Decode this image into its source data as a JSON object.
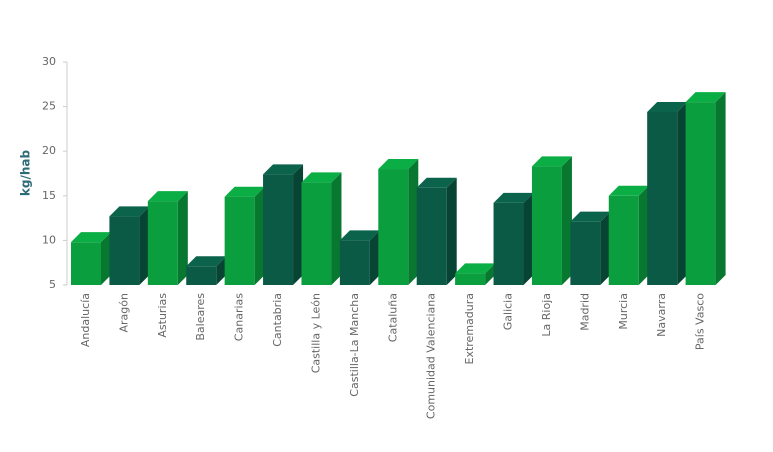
{
  "chart_data": {
    "type": "bar3d",
    "y_label": "kg/hab",
    "categories": [
      "Andalucía",
      "Aragón",
      "Asturias",
      "Baleares",
      "Canarias",
      "Cantabria",
      "Castilla y León",
      "Castilla-La Mancha",
      "Cataluña",
      "Comunidad Valenciana",
      "Extremadura",
      "Galicia",
      "La Rioja",
      "Madrid",
      "Murcia",
      "Navarra",
      "País Vasco"
    ],
    "values": [
      9.8,
      12.7,
      14.4,
      7.1,
      14.9,
      17.4,
      16.5,
      10.0,
      18.0,
      15.9,
      6.3,
      14.2,
      18.3,
      12.1,
      15.0,
      24.4,
      25.5
    ],
    "colors": [
      "#0a9e3e",
      "#0b5a45",
      "#0a9e3e",
      "#0b5a45",
      "#0a9e3e",
      "#0b5a45",
      "#0a9e3e",
      "#0b5a45",
      "#0a9e3e",
      "#0b5a45",
      "#0a9e3e",
      "#0b5a45",
      "#0a9e3e",
      "#0b5a45",
      "#0a9e3e",
      "#0b5a45",
      "#0a9e3e"
    ],
    "ylim": [
      5,
      30
    ],
    "yticks": [
      5,
      10,
      15,
      20,
      25,
      30
    ]
  }
}
